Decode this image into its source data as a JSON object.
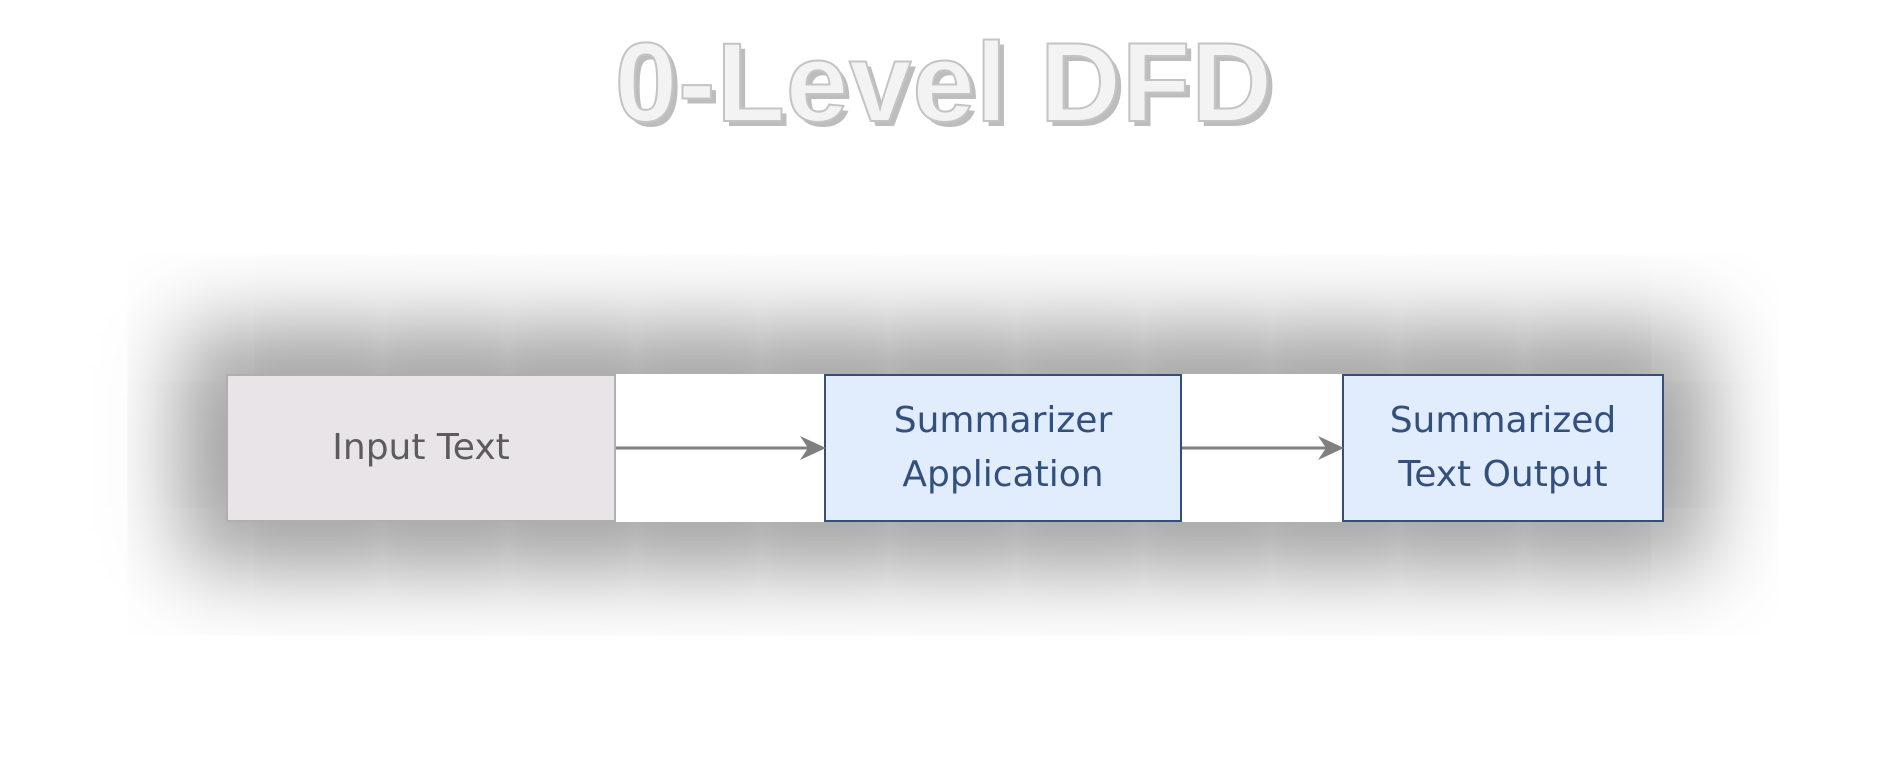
{
  "diagram": {
    "title": "0-Level DFD",
    "nodes": [
      {
        "id": "input",
        "label": "Input Text"
      },
      {
        "id": "app",
        "label": "Summarizer\nApplication"
      },
      {
        "id": "output",
        "label": "Summarized\nText   Output"
      }
    ],
    "edges": [
      {
        "from": "input",
        "to": "app"
      },
      {
        "from": "app",
        "to": "output"
      }
    ],
    "colors": {
      "external_entity_fill": "#e8e4e7",
      "external_entity_border": "#b2adb0",
      "process_fill": "#e1edfc",
      "process_border": "#34507a",
      "arrow": "#808080"
    }
  }
}
